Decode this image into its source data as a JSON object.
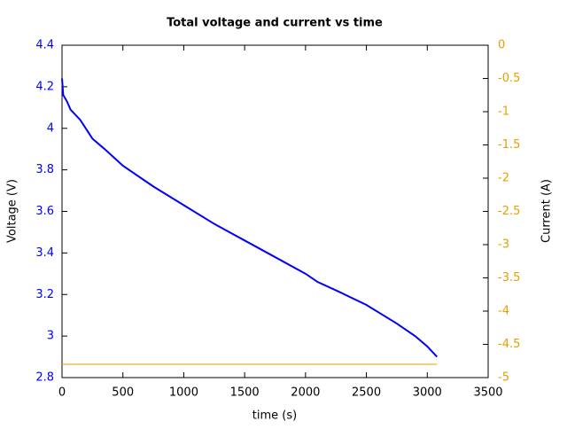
{
  "chart_data": {
    "type": "line",
    "title": "Total voltage and current vs time",
    "x_label": "time (s)",
    "y_label": "Voltage (V)",
    "y2_label": "Current (A)",
    "xlim": [
      0,
      3500
    ],
    "xticks": [
      0,
      500,
      1000,
      1500,
      2000,
      2500,
      3000,
      3500
    ],
    "ylim": [
      2.8,
      4.4
    ],
    "yticks": [
      2.8,
      3,
      3.2,
      3.4,
      3.6,
      3.8,
      4,
      4.2,
      4.4
    ],
    "y2lim": [
      -5,
      0
    ],
    "y2ticks": [
      -5,
      -4.5,
      -4,
      -3.5,
      -3,
      -2.5,
      -2,
      -1.5,
      -1,
      -0.5,
      0
    ],
    "series": [
      {
        "color": "#0000ff",
        "x": [
          0,
          10,
          40,
          70,
          150,
          250,
          350,
          500,
          750,
          1000,
          1250,
          1500,
          1750,
          2000,
          2100,
          2250,
          2500,
          2750,
          2900,
          3000,
          3080
        ],
        "values": [
          4.24,
          4.16,
          4.13,
          4.09,
          4.04,
          3.95,
          3.9,
          3.82,
          3.72,
          3.63,
          3.54,
          3.46,
          3.38,
          3.3,
          3.26,
          3.22,
          3.15,
          3.06,
          3.0,
          2.95,
          2.9
        ]
      },
      {
        "color": "#e69f00",
        "axis": "y2",
        "x": [
          0,
          3080
        ],
        "values": [
          -4.8,
          -4.8
        ]
      }
    ]
  }
}
